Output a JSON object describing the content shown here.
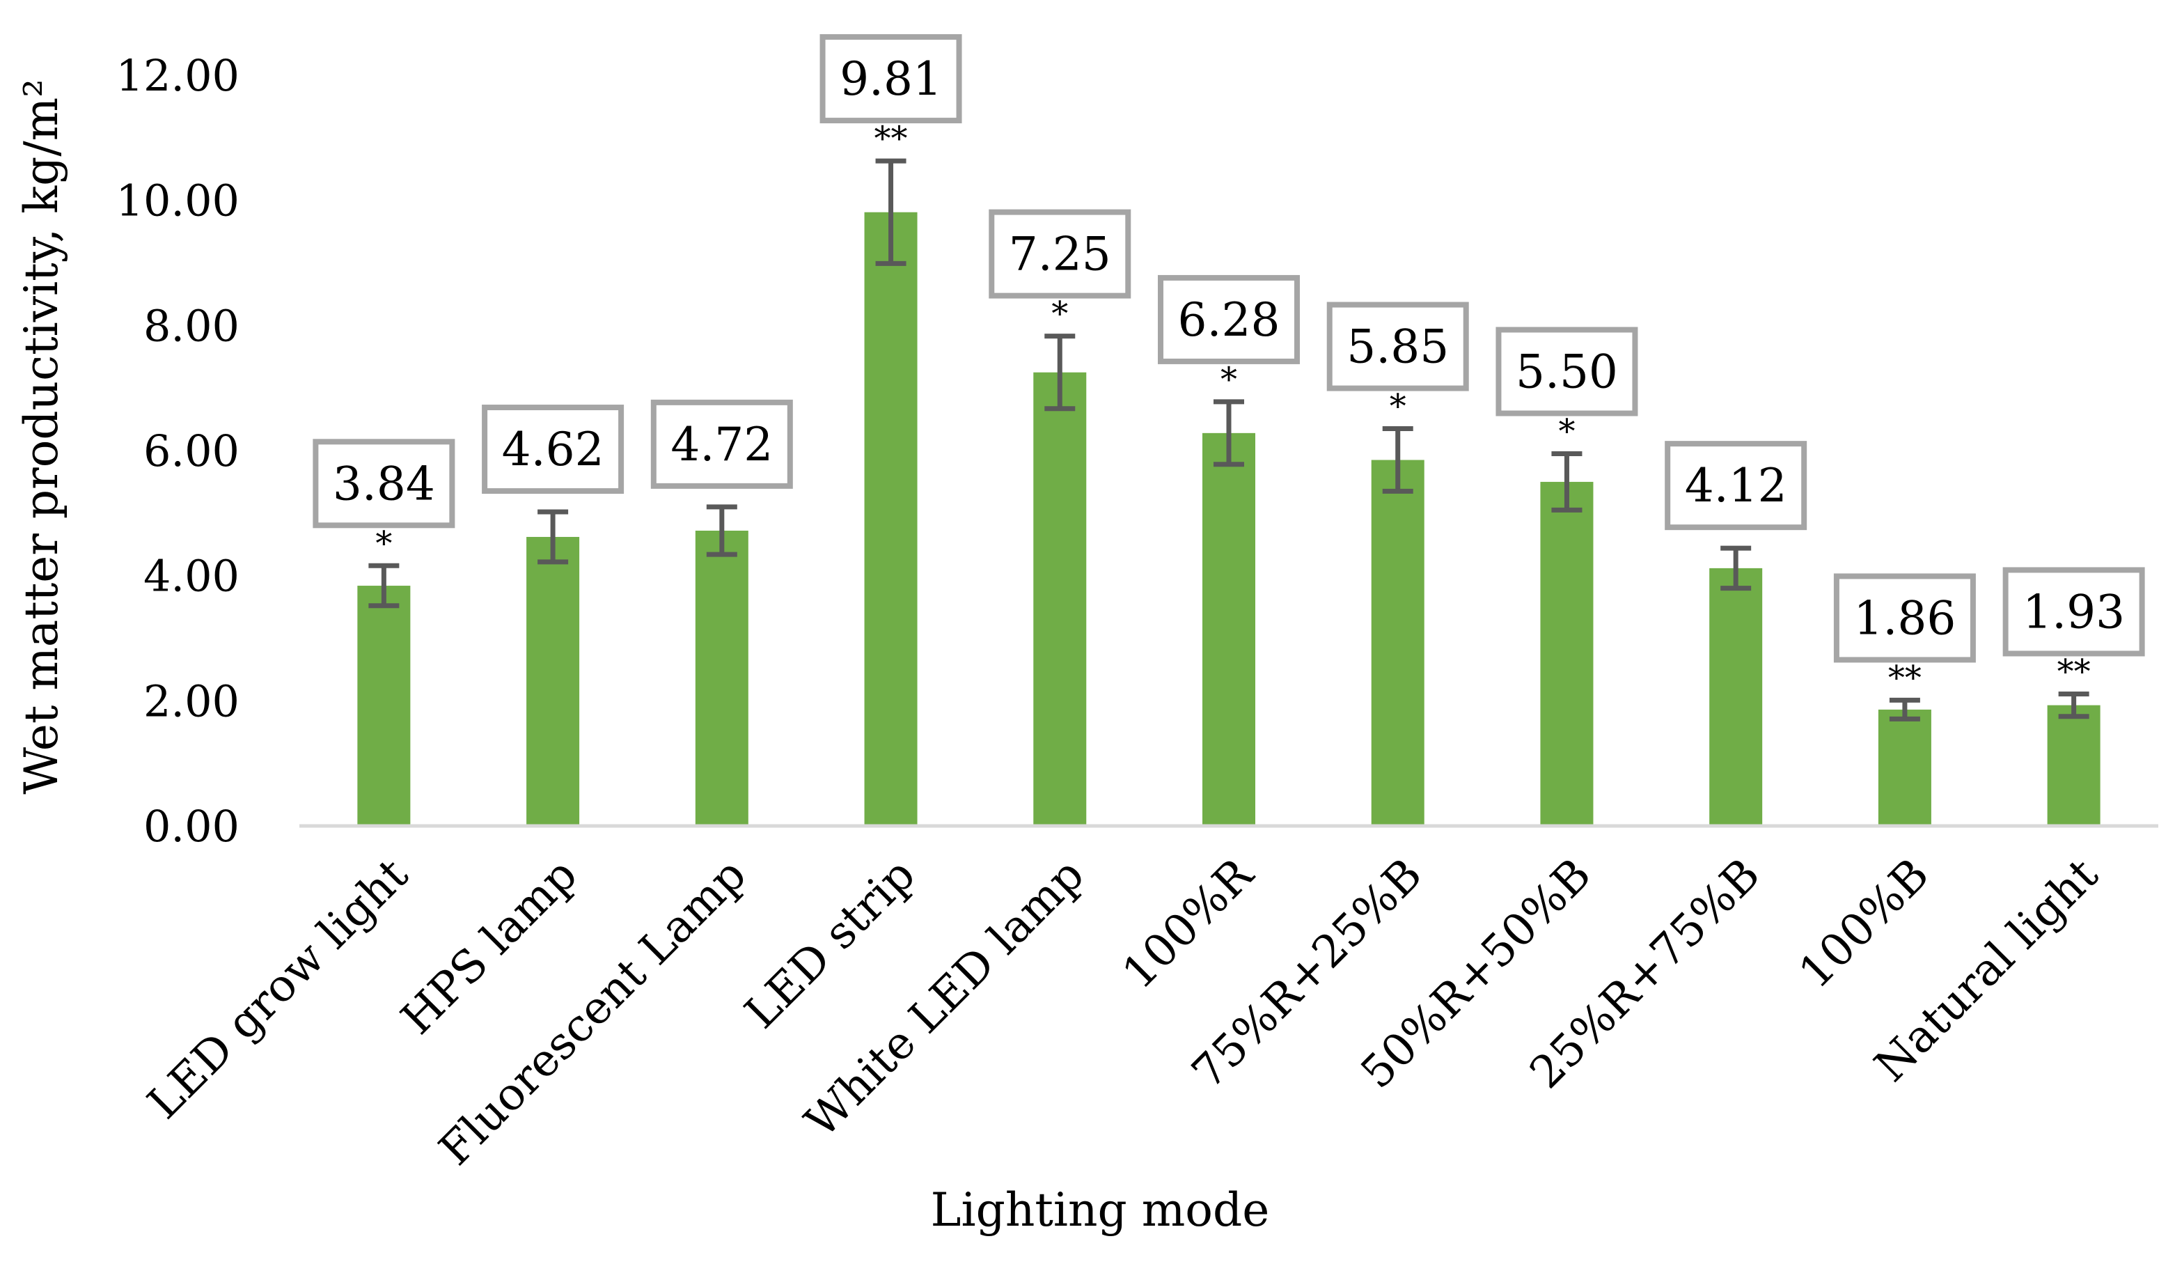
{
  "chart_data": {
    "type": "bar",
    "title": "",
    "xlabel": "Lighting mode",
    "ylabel": "Wet matter productivity, kg/m²",
    "ylim": [
      0,
      12
    ],
    "ytick_step": 2,
    "ytick_labels": [
      "0.00",
      "2.00",
      "4.00",
      "6.00",
      "8.00",
      "10.00",
      "12.00"
    ],
    "categories": [
      "LED grow light",
      "HPS lamp",
      "Fluorescent Lamp",
      "LED strip",
      "White LED lamp",
      "100%R",
      "75%R+25%B",
      "50%R+50%B",
      "25%R+75%B",
      "100%B",
      "Natural light"
    ],
    "values": [
      3.84,
      4.62,
      4.72,
      9.81,
      7.25,
      6.28,
      5.85,
      5.5,
      4.12,
      1.86,
      1.93
    ],
    "data_labels": [
      "3.84",
      "4.62",
      "4.72",
      "9.81",
      "7.25",
      "6.28",
      "5.85",
      "5.50",
      "4.12",
      "1.86",
      "1.93"
    ],
    "errors": [
      0.32,
      0.4,
      0.38,
      0.82,
      0.58,
      0.5,
      0.5,
      0.45,
      0.32,
      0.15,
      0.18
    ],
    "significance": [
      "*",
      "",
      "",
      "**",
      "*",
      "*",
      "*",
      "*",
      "",
      "**",
      "**"
    ],
    "grid": false,
    "legend": "none",
    "colors": {
      "bar": "#70ad47",
      "error_bar": "#595959",
      "axis_line": "#d9d9d9",
      "label_border": "#a5a5a5",
      "text": "#000000"
    }
  }
}
